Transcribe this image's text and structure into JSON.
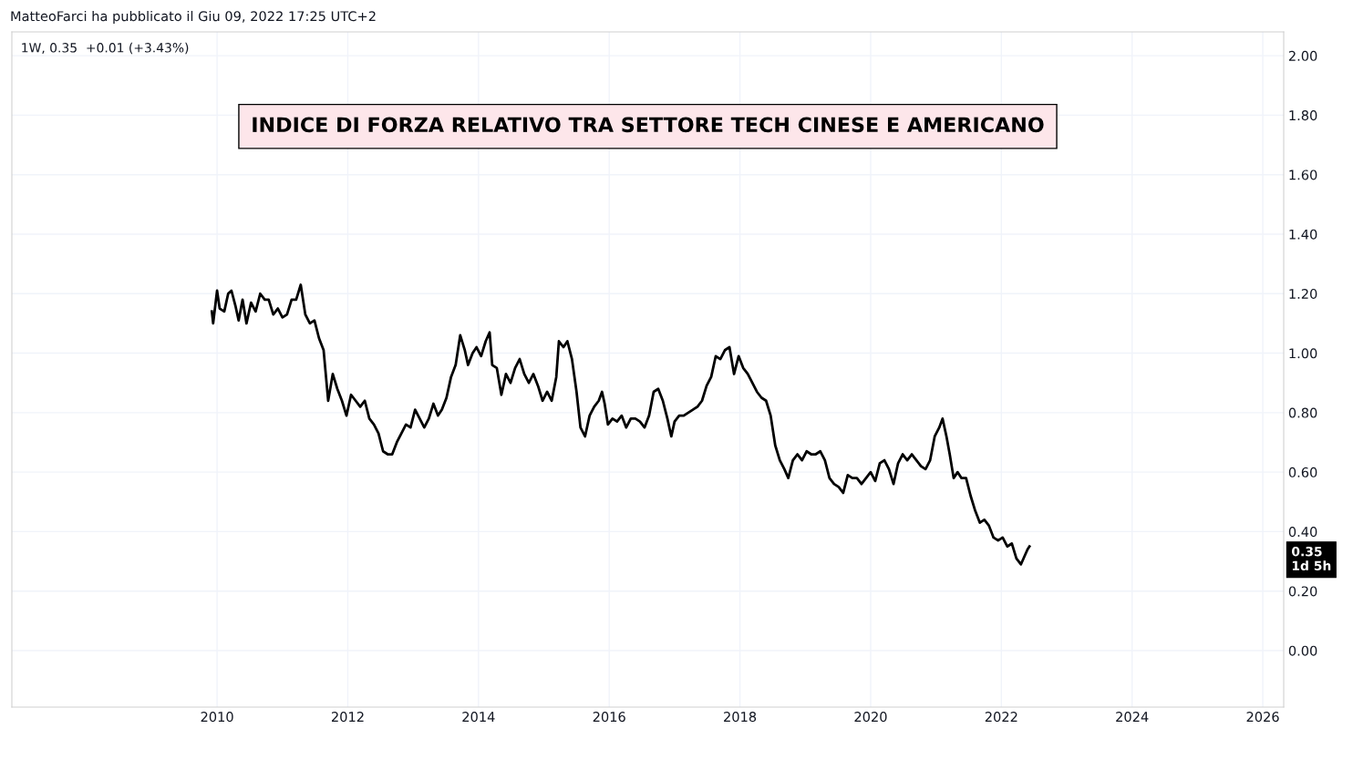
{
  "chart_data": {
    "type": "line",
    "title": "INDICE DI FORZA RELATIVO TRA SETTORE TECH CINESE E AMERICANO",
    "xlim": [
      2006.86,
      2026.32
    ],
    "ylim": [
      -0.19,
      2.08
    ],
    "xticks": [
      2010,
      2012,
      2014,
      2016,
      2018,
      2020,
      2022,
      2024,
      2026
    ],
    "yticks": [
      {
        "value": 0,
        "label": "0.00"
      },
      {
        "value": 0.2,
        "label": "0.20"
      },
      {
        "value": 0.4,
        "label": "0.40"
      },
      {
        "value": 0.6,
        "label": "0.60"
      },
      {
        "value": 0.8,
        "label": "0.80"
      },
      {
        "value": 1.0,
        "label": "1.00"
      },
      {
        "value": 1.2,
        "label": "1.20"
      },
      {
        "value": 1.4,
        "label": "1.40"
      },
      {
        "value": 1.6,
        "label": "1.60"
      },
      {
        "value": 1.8,
        "label": "1.80"
      },
      {
        "value": 2.0,
        "label": "2.00"
      }
    ],
    "grid": true,
    "marker": "none",
    "line_style": "solid",
    "annotations": [
      "MatteoFarci ha pubblicato il Giu 09, 2022 17:25 UTC+2",
      "1W, 0.35  +0.01 (+3.43%)",
      "0.35\n1d 5h"
    ],
    "series": [
      {
        "color": "#000000",
        "x": [
          2009.92,
          2009.94,
          2010.0,
          2010.04,
          2010.11,
          2010.17,
          2010.22,
          2010.28,
          2010.33,
          2010.39,
          2010.45,
          2010.52,
          2010.59,
          2010.66,
          2010.73,
          2010.79,
          2010.86,
          2010.93,
          2011.0,
          2011.07,
          2011.14,
          2011.21,
          2011.28,
          2011.35,
          2011.42,
          2011.49,
          2011.56,
          2011.63,
          2011.7,
          2011.77,
          2011.84,
          2011.91,
          2011.98,
          2012.05,
          2012.12,
          2012.19,
          2012.26,
          2012.33,
          2012.4,
          2012.47,
          2012.54,
          2012.61,
          2012.68,
          2012.75,
          2012.82,
          2012.89,
          2012.96,
          2013.03,
          2013.1,
          2013.17,
          2013.24,
          2013.31,
          2013.38,
          2013.44,
          2013.51,
          2013.58,
          2013.65,
          2013.72,
          2013.79,
          2013.84,
          2013.91,
          2013.97,
          2014.04,
          2014.11,
          2014.17,
          2014.21,
          2014.28,
          2014.35,
          2014.42,
          2014.49,
          2014.56,
          2014.63,
          2014.7,
          2014.77,
          2014.84,
          2014.91,
          2014.98,
          2015.05,
          2015.12,
          2015.19,
          2015.23,
          2015.3,
          2015.36,
          2015.43,
          2015.5,
          2015.56,
          2015.63,
          2015.7,
          2015.77,
          2015.84,
          2015.89,
          2015.93,
          2015.98,
          2016.05,
          2016.12,
          2016.19,
          2016.26,
          2016.33,
          2016.4,
          2016.47,
          2016.54,
          2016.61,
          2016.68,
          2016.75,
          2016.82,
          2016.89,
          2016.95,
          2017.0,
          2017.07,
          2017.14,
          2017.21,
          2017.28,
          2017.35,
          2017.42,
          2017.49,
          2017.56,
          2017.63,
          2017.7,
          2017.77,
          2017.84,
          2017.91,
          2017.98,
          2018.05,
          2018.12,
          2018.19,
          2018.26,
          2018.33,
          2018.4,
          2018.47,
          2018.54,
          2018.61,
          2018.68,
          2018.74,
          2018.81,
          2018.88,
          2018.95,
          2019.02,
          2019.09,
          2019.16,
          2019.23,
          2019.3,
          2019.37,
          2019.44,
          2019.51,
          2019.58,
          2019.65,
          2019.72,
          2019.79,
          2019.86,
          2019.93,
          2020.0,
          2020.07,
          2020.14,
          2020.21,
          2020.28,
          2020.35,
          2020.42,
          2020.49,
          2020.56,
          2020.63,
          2020.7,
          2020.77,
          2020.84,
          2020.91,
          2020.98,
          2021.05,
          2021.1,
          2021.16,
          2021.21,
          2021.27,
          2021.33,
          2021.39,
          2021.46,
          2021.53,
          2021.6,
          2021.67,
          2021.74,
          2021.81,
          2021.88,
          2021.95,
          2022.02,
          2022.09,
          2022.16,
          2022.23,
          2022.3,
          2022.34,
          2022.4,
          2022.43
        ],
        "values": [
          1.14,
          1.1,
          1.21,
          1.15,
          1.14,
          1.2,
          1.21,
          1.16,
          1.11,
          1.18,
          1.1,
          1.17,
          1.14,
          1.2,
          1.18,
          1.18,
          1.13,
          1.15,
          1.12,
          1.13,
          1.18,
          1.18,
          1.23,
          1.13,
          1.1,
          1.11,
          1.05,
          1.01,
          0.84,
          0.93,
          0.88,
          0.84,
          0.79,
          0.86,
          0.84,
          0.82,
          0.84,
          0.78,
          0.76,
          0.73,
          0.67,
          0.66,
          0.66,
          0.7,
          0.73,
          0.76,
          0.75,
          0.81,
          0.78,
          0.75,
          0.78,
          0.83,
          0.79,
          0.81,
          0.85,
          0.92,
          0.96,
          1.06,
          1.01,
          0.96,
          1.0,
          1.02,
          0.99,
          1.04,
          1.07,
          0.96,
          0.95,
          0.86,
          0.93,
          0.9,
          0.95,
          0.98,
          0.93,
          0.9,
          0.93,
          0.89,
          0.84,
          0.87,
          0.84,
          0.92,
          1.04,
          1.02,
          1.04,
          0.98,
          0.87,
          0.75,
          0.72,
          0.79,
          0.82,
          0.84,
          0.87,
          0.83,
          0.76,
          0.78,
          0.77,
          0.79,
          0.75,
          0.78,
          0.78,
          0.77,
          0.75,
          0.79,
          0.87,
          0.88,
          0.84,
          0.78,
          0.72,
          0.77,
          0.79,
          0.79,
          0.8,
          0.81,
          0.82,
          0.84,
          0.89,
          0.92,
          0.99,
          0.98,
          1.01,
          1.02,
          0.93,
          0.99,
          0.95,
          0.93,
          0.9,
          0.87,
          0.85,
          0.84,
          0.79,
          0.69,
          0.64,
          0.61,
          0.58,
          0.64,
          0.66,
          0.64,
          0.67,
          0.66,
          0.66,
          0.67,
          0.64,
          0.58,
          0.56,
          0.55,
          0.53,
          0.59,
          0.58,
          0.58,
          0.56,
          0.58,
          0.6,
          0.57,
          0.63,
          0.64,
          0.61,
          0.56,
          0.63,
          0.66,
          0.64,
          0.66,
          0.64,
          0.62,
          0.61,
          0.64,
          0.72,
          0.75,
          0.78,
          0.72,
          0.66,
          0.58,
          0.6,
          0.58,
          0.58,
          0.52,
          0.47,
          0.43,
          0.44,
          0.42,
          0.38,
          0.37,
          0.38,
          0.35,
          0.36,
          0.31,
          0.29,
          0.31,
          0.34,
          0.35
        ]
      }
    ]
  }
}
